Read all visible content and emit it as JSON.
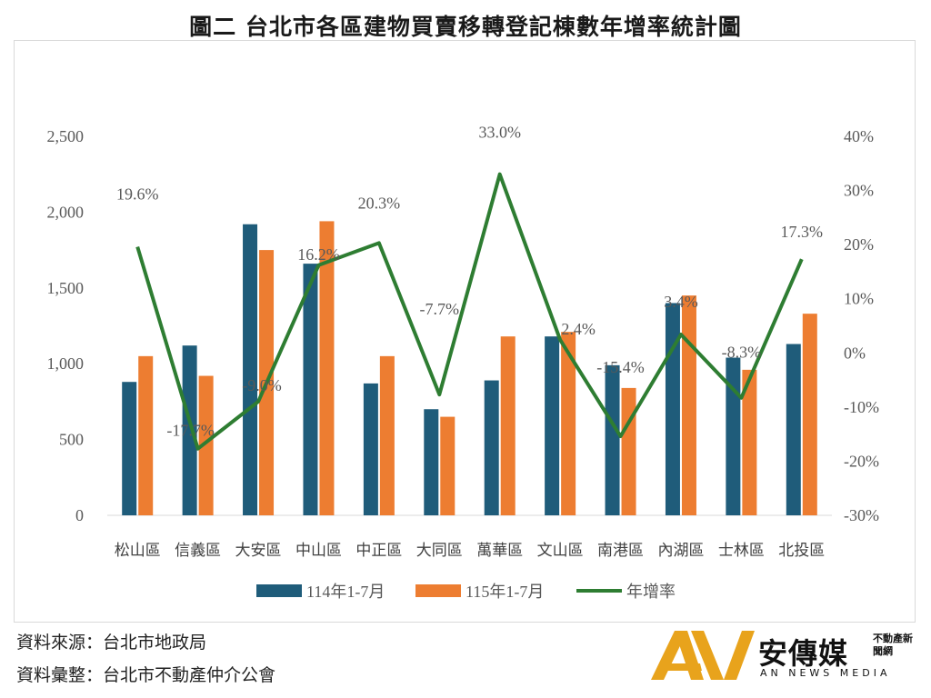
{
  "title": "圖二 台北市各區建物買賣移轉登記棟數年增率統計圖",
  "source_line1": "資料來源：台北市地政局",
  "source_line2": "資料彙整：台北市不動產仲介公會",
  "logo": {
    "name": "安傳媒",
    "tag": "不動產新聞網",
    "english": "AN NEWS MEDIA"
  },
  "colors": {
    "series1": "#1f5c7a",
    "series2": "#ed7d31",
    "line": "#2e7d32"
  },
  "chart_data": {
    "type": "bar",
    "title": "圖二 台北市各區建物買賣移轉登記棟數年增率統計圖",
    "categories": [
      "松山區",
      "信義區",
      "大安區",
      "中山區",
      "中正區",
      "大同區",
      "萬華區",
      "文山區",
      "南港區",
      "內湖區",
      "士林區",
      "北投區"
    ],
    "series": [
      {
        "name": "114年1-7月",
        "type": "bar",
        "axis": "left",
        "values": [
          880,
          1120,
          1920,
          1660,
          870,
          700,
          890,
          1180,
          990,
          1400,
          1040,
          1130
        ]
      },
      {
        "name": "115年1-7月",
        "type": "bar",
        "axis": "left",
        "values": [
          1050,
          920,
          1750,
          1940,
          1050,
          650,
          1180,
          1210,
          840,
          1450,
          960,
          1330
        ]
      },
      {
        "name": "年增率",
        "type": "line",
        "axis": "right",
        "values": [
          19.6,
          -17.7,
          -9.0,
          16.2,
          20.3,
          -7.7,
          33.0,
          2.4,
          -15.4,
          3.4,
          -8.3,
          17.3
        ],
        "labels": [
          "19.6%",
          "-17.7%",
          "-9.0%",
          "16.2%",
          "20.3%",
          "-7.7%",
          "33.0%",
          "2.4%",
          "-15.4%",
          "3.4%",
          "-8.3%",
          "17.3%"
        ]
      }
    ],
    "ylim": [
      0,
      2500
    ],
    "y_ticks": [
      0,
      500,
      1000,
      1500,
      2000,
      2500
    ],
    "y_tick_labels": [
      "0",
      "500",
      "1,000",
      "1,500",
      "2,000",
      "2,500"
    ],
    "y2lim": [
      -30,
      40
    ],
    "y2_ticks": [
      -30,
      -20,
      -10,
      0,
      10,
      20,
      30,
      40
    ],
    "y2_tick_labels": [
      "-30%",
      "-20%",
      "-10%",
      "0%",
      "10%",
      "20%",
      "30%",
      "40%"
    ],
    "grid": false,
    "legend_position": "bottom"
  }
}
